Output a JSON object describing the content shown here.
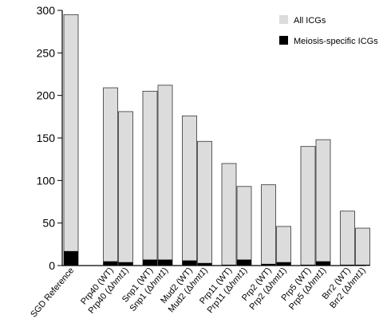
{
  "chart_data": {
    "type": "bar",
    "categories": [
      {
        "pre": "SGD Reference",
        "ital": "",
        "post": ""
      },
      {
        "pre": "Prp40 (WT)",
        "ital": "",
        "post": ""
      },
      {
        "pre": "Prp40 (Δ",
        "ital": "hmt1",
        "post": ")"
      },
      {
        "pre": "Snp1 (WT)",
        "ital": "",
        "post": ""
      },
      {
        "pre": "Snp1 (Δ",
        "ital": "hmt1",
        "post": ")"
      },
      {
        "pre": "Mud2 (WT)",
        "ital": "",
        "post": ""
      },
      {
        "pre": "Mud2 (Δ",
        "ital": "hmt1",
        "post": ")"
      },
      {
        "pre": "Prp11 (WT)",
        "ital": "",
        "post": ""
      },
      {
        "pre": "Prp11 (Δ",
        "ital": "hmt1",
        "post": ")"
      },
      {
        "pre": "Prp2 (WT)",
        "ital": "",
        "post": ""
      },
      {
        "pre": "Prp2 (Δ",
        "ital": "hmt1",
        "post": ")"
      },
      {
        "pre": "Prp5 (WT)",
        "ital": "",
        "post": ""
      },
      {
        "pre": "Prp5 (Δ",
        "ital": "hmt1",
        "post": ")"
      },
      {
        "pre": "Brr2 (WT)",
        "ital": "",
        "post": ""
      },
      {
        "pre": "Brr2 (Δ",
        "ital": "hmt1",
        "post": ")"
      }
    ],
    "groups": [
      [
        0
      ],
      [
        1,
        2
      ],
      [
        3,
        4
      ],
      [
        5,
        6
      ],
      [
        7,
        8
      ],
      [
        9,
        10
      ],
      [
        11,
        12
      ],
      [
        13,
        14
      ]
    ],
    "series": [
      {
        "name": "All ICGs",
        "color": "#dcdcdc",
        "values": [
          295,
          209,
          181,
          205,
          212,
          176,
          146,
          120,
          93,
          95,
          46,
          140,
          148,
          64,
          44
        ]
      },
      {
        "name": "Meiosis-specific ICGs",
        "color": "#000000",
        "values": [
          17,
          5,
          4,
          7,
          7,
          6,
          3,
          1,
          7,
          2,
          4,
          1,
          5,
          1,
          1
        ]
      }
    ],
    "ylim": [
      0,
      300
    ],
    "yticks": [
      0,
      50,
      100,
      150,
      200,
      250,
      300
    ],
    "title": "",
    "xlabel": "",
    "ylabel": "",
    "legend_position": "top-right",
    "grid": false
  }
}
